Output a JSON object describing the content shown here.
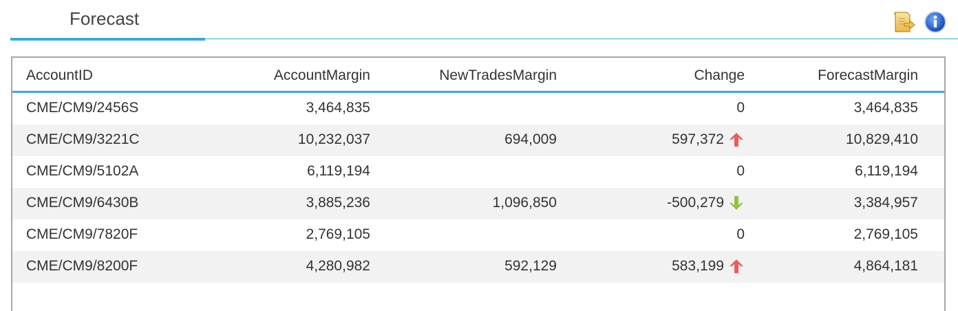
{
  "tabs": [
    {
      "label": "Forecast",
      "active": true
    }
  ],
  "toolbar": {
    "icons": [
      "export-icon",
      "info-icon"
    ]
  },
  "colors": {
    "accent": "#3aaadc",
    "up": "#f0595a",
    "down": "#8cc63f",
    "row_alt": "#f2f2f2"
  },
  "table": {
    "columns": [
      "AccountID",
      "AccountMargin",
      "NewTradesMargin",
      "Change",
      "ForecastMargin"
    ],
    "rows": [
      {
        "account_id": "CME/CM9/2456S",
        "account_margin": "3,464,835",
        "new_trades_margin": "",
        "change": "0",
        "trend": "none",
        "forecast_margin": "3,464,835"
      },
      {
        "account_id": "CME/CM9/3221C",
        "account_margin": "10,232,037",
        "new_trades_margin": "694,009",
        "change": "597,372",
        "trend": "up",
        "forecast_margin": "10,829,410"
      },
      {
        "account_id": "CME/CM9/5102A",
        "account_margin": "6,119,194",
        "new_trades_margin": "",
        "change": "0",
        "trend": "none",
        "forecast_margin": "6,119,194"
      },
      {
        "account_id": "CME/CM9/6430B",
        "account_margin": "3,885,236",
        "new_trades_margin": "1,096,850",
        "change": "-500,279",
        "trend": "down",
        "forecast_margin": "3,384,957"
      },
      {
        "account_id": "CME/CM9/7820F",
        "account_margin": "2,769,105",
        "new_trades_margin": "",
        "change": "0",
        "trend": "none",
        "forecast_margin": "2,769,105"
      },
      {
        "account_id": "CME/CM9/8200F",
        "account_margin": "4,280,982",
        "new_trades_margin": "592,129",
        "change": "583,199",
        "trend": "up",
        "forecast_margin": "4,864,181"
      }
    ]
  }
}
